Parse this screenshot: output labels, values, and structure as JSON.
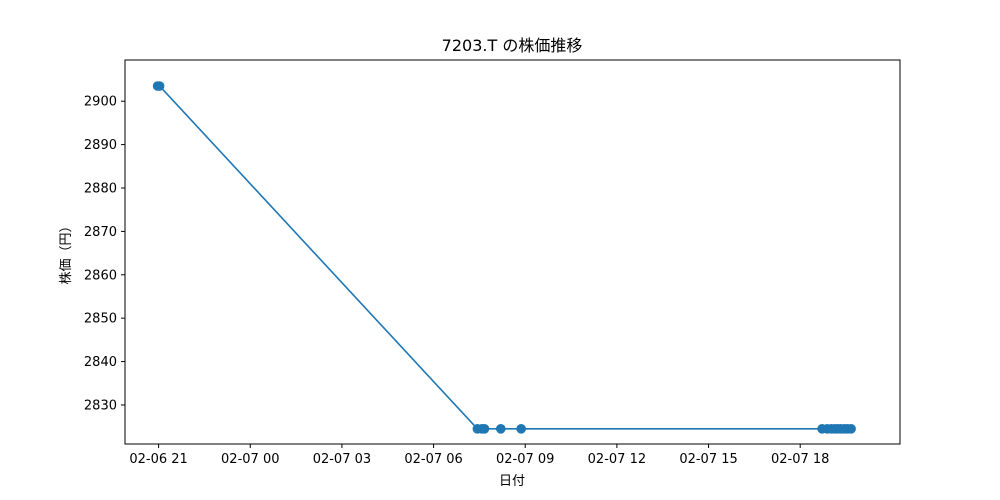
{
  "chart_data": {
    "type": "line",
    "title": "7203.T の株価推移",
    "xlabel": "日付",
    "ylabel": "株価（円）",
    "x_unit": "datetime",
    "xlim": [
      "2024-02-06 19:54",
      "2024-02-07 21:16"
    ],
    "ylim": [
      2821,
      2909.5
    ],
    "grid": false,
    "legend": "none",
    "x_ticks": [
      "02-06 21",
      "02-07 00",
      "02-07 03",
      "02-07 06",
      "02-07 09",
      "02-07 12",
      "02-07 15",
      "02-07 18"
    ],
    "x_tick_values": [
      "2024-02-06 21:00",
      "2024-02-07 00:00",
      "2024-02-07 03:00",
      "2024-02-07 06:00",
      "2024-02-07 09:00",
      "2024-02-07 12:00",
      "2024-02-07 15:00",
      "2024-02-07 18:00"
    ],
    "y_ticks": [
      2830,
      2840,
      2850,
      2860,
      2870,
      2880,
      2890,
      2900
    ],
    "series": [
      {
        "color": "#1f77b4",
        "marker": "circle",
        "points": [
          {
            "x": "2024-02-06 20:58",
            "y": 2903.5
          },
          {
            "x": "2024-02-06 21:02",
            "y": 2903.5
          },
          {
            "x": "2024-02-07 07:26",
            "y": 2824.5
          },
          {
            "x": "2024-02-07 07:35",
            "y": 2824.5
          },
          {
            "x": "2024-02-07 07:40",
            "y": 2824.5
          },
          {
            "x": "2024-02-07 08:12",
            "y": 2824.5
          },
          {
            "x": "2024-02-07 08:52",
            "y": 2824.5
          },
          {
            "x": "2024-02-07 18:43",
            "y": 2824.5
          },
          {
            "x": "2024-02-07 18:53",
            "y": 2824.5
          },
          {
            "x": "2024-02-07 19:01",
            "y": 2824.5
          },
          {
            "x": "2024-02-07 19:08",
            "y": 2824.5
          },
          {
            "x": "2024-02-07 19:14",
            "y": 2824.5
          },
          {
            "x": "2024-02-07 19:20",
            "y": 2824.5
          },
          {
            "x": "2024-02-07 19:27",
            "y": 2824.5
          },
          {
            "x": "2024-02-07 19:33",
            "y": 2824.5
          },
          {
            "x": "2024-02-07 19:40",
            "y": 2824.5
          }
        ]
      }
    ]
  }
}
